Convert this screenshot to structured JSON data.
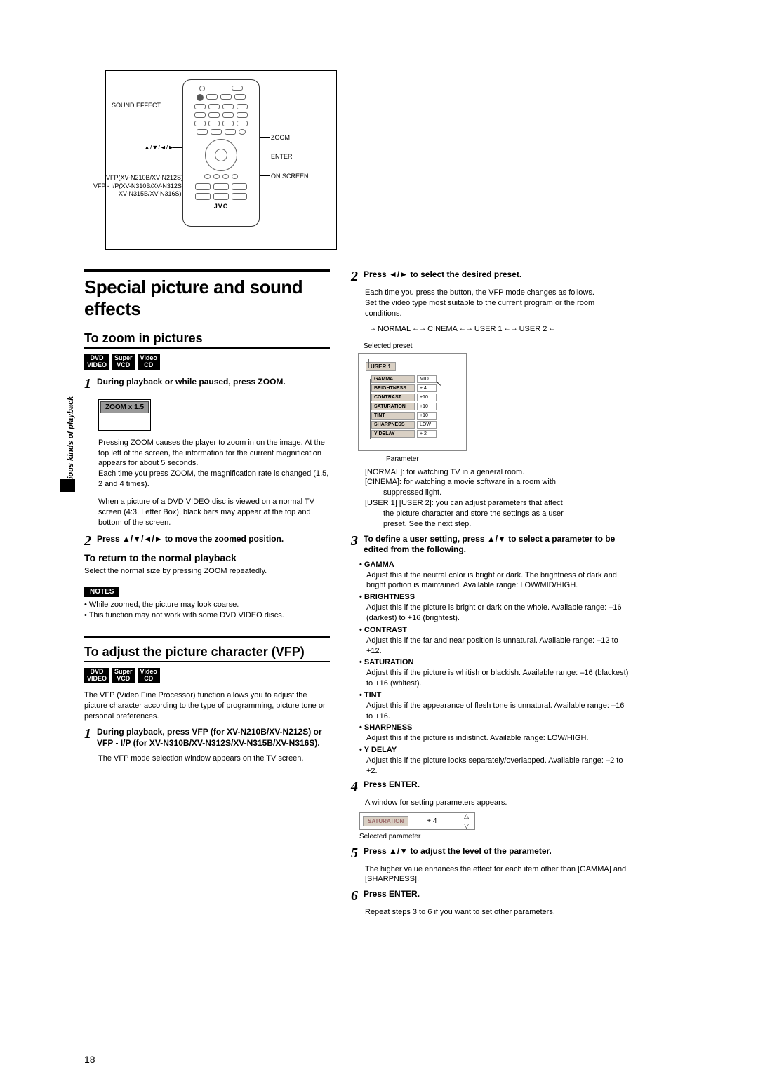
{
  "sideLabel": "Various kinds of playback",
  "remote": {
    "labels": {
      "soundEffect": "SOUND EFFECT",
      "arrows": "▲/▼/◄/►",
      "vfp1": "VFP(XV-N210B/XV-N212S)",
      "vfp2": "VFP - I/P(XV-N310B/XV-N312S/",
      "vfp3": "XV-N315B/XV-N316S)",
      "zoom": "ZOOM",
      "enter": "ENTER",
      "onscreen": "ON SCREEN",
      "brand": "JVC"
    }
  },
  "h1": "Special picture and sound effects",
  "zoomSection": {
    "title": "To zoom in pictures",
    "badges": [
      "DVD\nVIDEO",
      "Super\nVCD",
      "Video\nCD"
    ],
    "step1": "During playback or while paused, press ZOOM.",
    "zoomLabel": "ZOOM x 1.5",
    "para1": "Pressing ZOOM causes the player to zoom in on the image. At the top left of the screen, the information for the current magnification appears for about 5 seconds.",
    "para2": "Each time you press ZOOM, the magnification rate is changed (1.5, 2 and 4 times).",
    "para3": "When a picture of a DVD VIDEO disc is viewed on a normal TV screen (4:3, Letter Box), black bars may appear at the top and bottom of the screen.",
    "step2": "Press ▲/▼/◄/► to move the zoomed position.",
    "returnTitle": "To return to the normal playback",
    "returnText": "Select the normal size by pressing ZOOM repeatedly.",
    "notesLabel": "NOTES",
    "notes": [
      "• While zoomed, the picture may look coarse.",
      "• This function may not work with some DVD VIDEO discs."
    ]
  },
  "vfpSection": {
    "title": "To adjust the picture character (VFP)",
    "badges": [
      "DVD\nVIDEO",
      "Super\nVCD",
      "Video\nCD"
    ],
    "intro": "The VFP (Video Fine Processor) function allows you to adjust the picture character according to the type of programming, picture tone or personal preferences.",
    "step1": "During playback, press VFP (for XV-N210B/XV-N212S) or VFP - I/P (for XV-N310B/XV-N312S/XV-N315B/XV-N316S).",
    "step1b": "The VFP mode selection window appears on the TV screen."
  },
  "rightCol": {
    "step2": "Press ◄/► to select the desired preset.",
    "step2a": "Each time you press the button, the VFP mode changes as follows.",
    "step2b": "Set the video type most suitable to the current program or the room conditions.",
    "modes": [
      "NORMAL",
      "CINEMA",
      "USER 1",
      "USER 2"
    ],
    "selectedPreset": "Selected preset",
    "onscreen": {
      "title": "USER 1",
      "params": [
        {
          "name": "GAMMA",
          "val": "MID"
        },
        {
          "name": "BRIGHTNESS",
          "val": "+ 4"
        },
        {
          "name": "CONTRAST",
          "val": "+10"
        },
        {
          "name": "SATURATION",
          "val": "+10"
        },
        {
          "name": "TINT",
          "val": "+10"
        },
        {
          "name": "SHARPNESS",
          "val": "LOW"
        },
        {
          "name": "Y DELAY",
          "val": "+ 2"
        }
      ],
      "parameterLabel": "Parameter"
    },
    "modeDesc": [
      "[NORMAL]: for watching TV in a general room.",
      "[CINEMA]: for watching a movie software in a room with suppressed light.",
      "[USER 1] [USER 2]: you can adjust parameters that affect the picture character and store the settings as a user preset. See the next step."
    ],
    "step3": "To define a user setting, press ▲/▼ to select a parameter to be edited from the following.",
    "paramDefs": [
      {
        "name": "• GAMMA",
        "desc": "Adjust this if the neutral color is bright or dark. The brightness of dark and bright portion is maintained. Available range: LOW/MID/HIGH."
      },
      {
        "name": "• BRIGHTNESS",
        "desc": "Adjust this if the picture is bright or dark on the whole. Available range: –16 (darkest) to +16 (brightest)."
      },
      {
        "name": "• CONTRAST",
        "desc": "Adjust this if the far and near position is unnatural. Available range: –12 to +12."
      },
      {
        "name": "• SATURATION",
        "desc": "Adjust this if the picture is whitish or blackish. Available range: –16 (blackest) to +16 (whitest)."
      },
      {
        "name": "• TINT",
        "desc": "Adjust this if the appearance of flesh tone is unnatural. Available range: –16 to +16."
      },
      {
        "name": "• SHARPNESS",
        "desc": "Adjust this if the picture is indistinct. Available range: LOW/HIGH."
      },
      {
        "name": "• Y DELAY",
        "desc": "Adjust this if the picture looks separately/overlapped. Available range: –2 to +2."
      }
    ],
    "step4": "Press ENTER.",
    "step4a": "A window for setting parameters appears.",
    "adjBox": {
      "name": "SATURATION",
      "val": "+  4",
      "below": "Selected parameter"
    },
    "step5": "Press ▲/▼ to adjust the level of the parameter.",
    "step5a": "The higher value enhances the effect for each item other than [GAMMA] and [SHARPNESS].",
    "step6": "Press ENTER.",
    "step6a": "Repeat steps 3 to 6 if you want to set other parameters."
  },
  "pageNumber": "18"
}
